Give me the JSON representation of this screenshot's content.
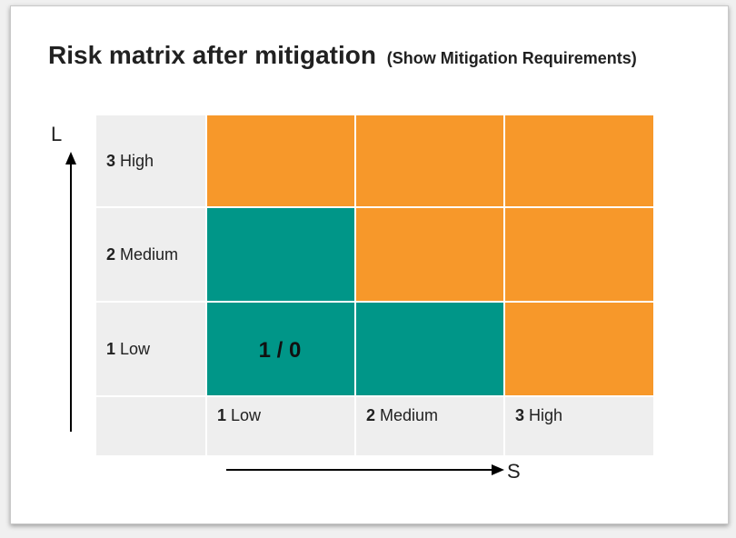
{
  "title": "Risk matrix after mitigation",
  "subtitle": "(Show Mitigation Requirements)",
  "colors": {
    "high": "#f7982a",
    "low": "#009688",
    "label_bg": "#eeeeee"
  },
  "chart_data": {
    "type": "heatmap",
    "title": "Risk matrix after mitigation",
    "subtitle": "(Show Mitigation Requirements)",
    "ylabel": "L",
    "xlabel": "S",
    "rows": [
      {
        "num": "3",
        "label": "High",
        "cells": [
          {
            "level": "high",
            "text": ""
          },
          {
            "level": "high",
            "text": ""
          },
          {
            "level": "high",
            "text": ""
          }
        ]
      },
      {
        "num": "2",
        "label": "Medium",
        "cells": [
          {
            "level": "low",
            "text": ""
          },
          {
            "level": "high",
            "text": ""
          },
          {
            "level": "high",
            "text": ""
          }
        ]
      },
      {
        "num": "1",
        "label": "Low",
        "cells": [
          {
            "level": "low",
            "text": "1 / 0"
          },
          {
            "level": "low",
            "text": ""
          },
          {
            "level": "high",
            "text": ""
          }
        ]
      }
    ],
    "columns": [
      {
        "num": "1",
        "label": "Low"
      },
      {
        "num": "2",
        "label": "Medium"
      },
      {
        "num": "3",
        "label": "High"
      }
    ]
  }
}
